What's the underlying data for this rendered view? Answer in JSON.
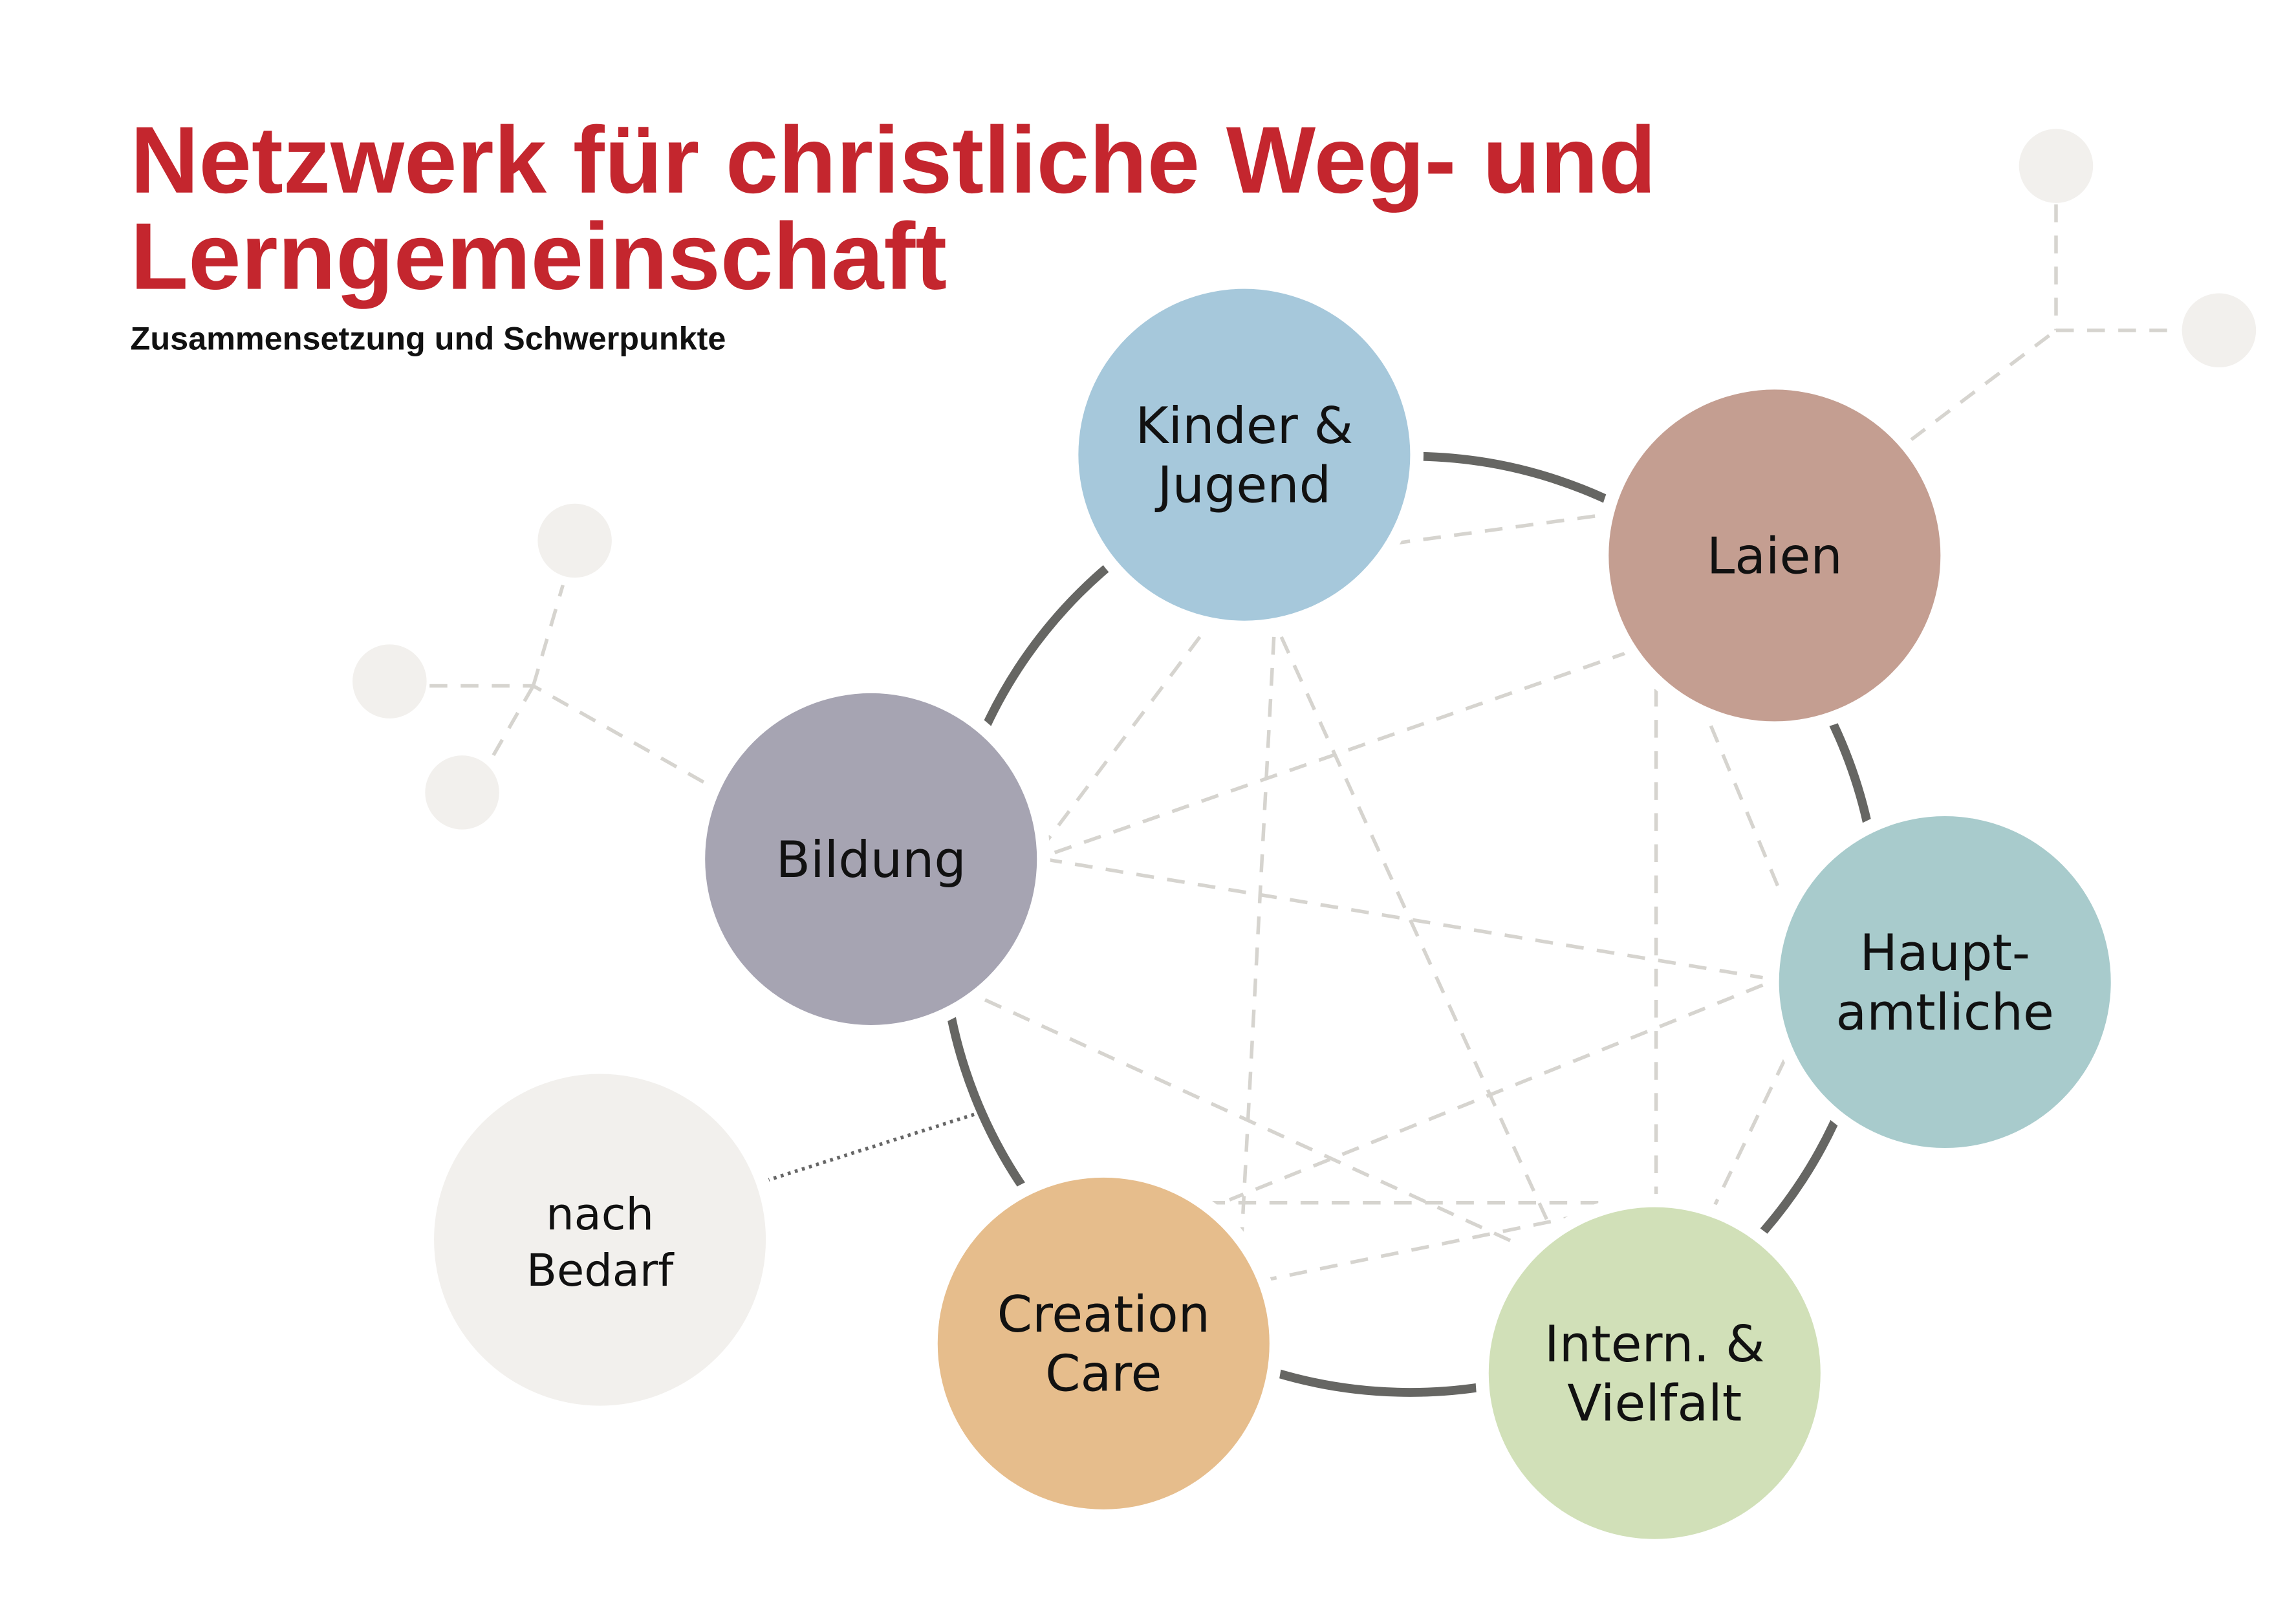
{
  "title_line1": "Netzwerk für christliche Weg- und",
  "title_line2": "Lerngemeinschaft",
  "subtitle": "Zusammensetzung und Schwerpunkte",
  "colors": {
    "title": "#c4262e",
    "ring": "#666663",
    "connector": "#d6d4cf",
    "satellite": "#f2f0ed"
  },
  "nodes": [
    {
      "id": "kinder",
      "lines": [
        "Kinder &",
        "Jugend"
      ],
      "color": "#a6c8db"
    },
    {
      "id": "laien",
      "lines": [
        "Laien"
      ],
      "color": "#c49e91"
    },
    {
      "id": "bildung",
      "lines": [
        "Bildung"
      ],
      "color": "#a6a4b2"
    },
    {
      "id": "hauptamtliche",
      "lines": [
        "Haupt-",
        "amtliche"
      ],
      "color": "#a8cbcc"
    },
    {
      "id": "creation",
      "lines": [
        "Creation",
        "Care"
      ],
      "color": "#e6bd8c"
    },
    {
      "id": "intern",
      "lines": [
        "Intern. &",
        "Vielfalt"
      ],
      "color": "#d1e0b8"
    },
    {
      "id": "nach-bedarf",
      "lines": [
        "nach",
        "Bedarf"
      ],
      "color": "#f2f0ed"
    }
  ]
}
